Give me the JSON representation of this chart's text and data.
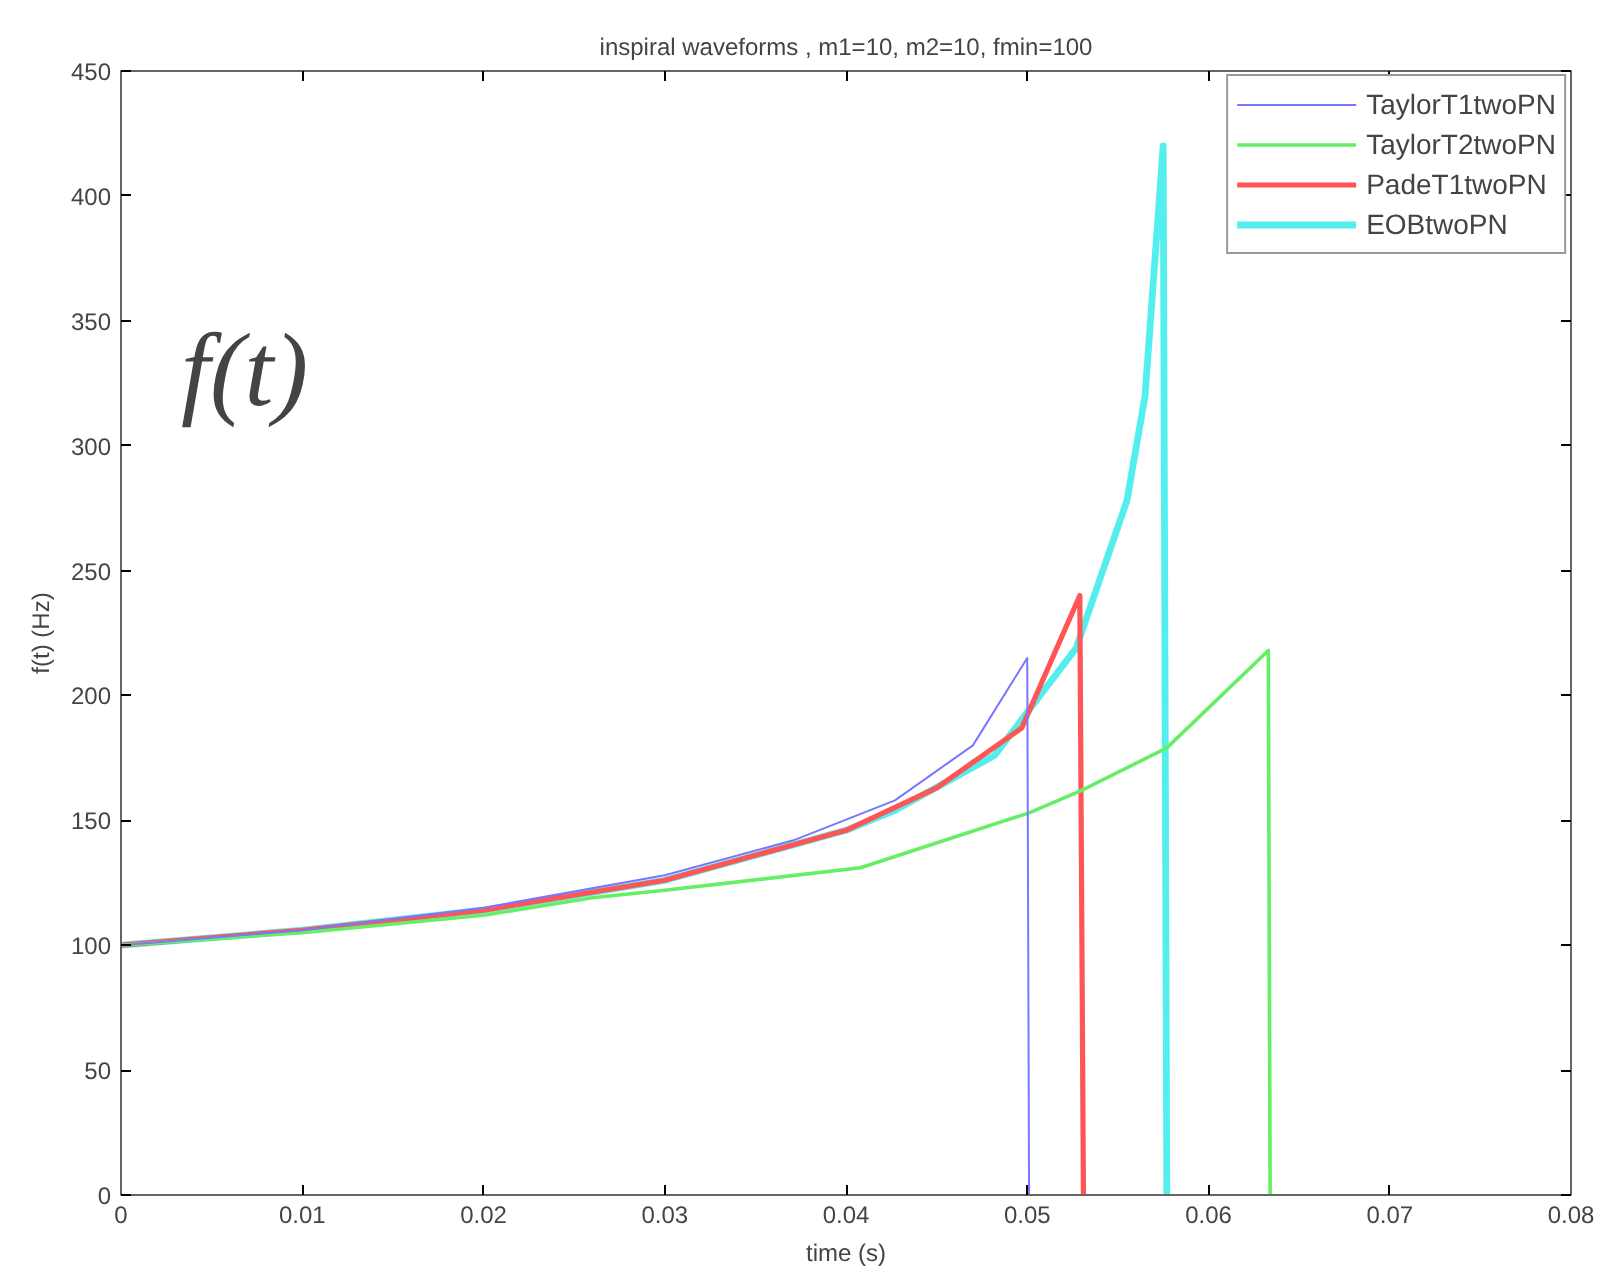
{
  "chart_data": {
    "type": "line",
    "title": "inspiral waveforms , m1=10, m2=10, fmin=100",
    "xlabel": "time (s)",
    "ylabel": "f(t) (Hz)",
    "annotations": [
      "f(t)"
    ],
    "xlim": [
      0,
      0.08
    ],
    "xticks": [
      0,
      0.01,
      0.02,
      0.03,
      0.04,
      0.05,
      0.06,
      0.07,
      0.08
    ],
    "ylim": [
      0,
      450
    ],
    "yticks": [
      0,
      50,
      100,
      150,
      200,
      250,
      300,
      350,
      400,
      450
    ],
    "grid": false,
    "legend": "top right",
    "line_style": "solid",
    "series": [
      {
        "name": "TaylorT1twoPN",
        "color": "#7777ff",
        "x": [
          0,
          0.01,
          0.02,
          0.03,
          0.0371,
          0.0427,
          0.047,
          0.05,
          0.0501
        ],
        "values": [
          100,
          106,
          115,
          128,
          142,
          158,
          180,
          215,
          0
        ]
      },
      {
        "name": "TaylorT2twoPN",
        "color": "#66ee66",
        "x": [
          0,
          0.01,
          0.02,
          0.026,
          0.03,
          0.0408,
          0.0501,
          0.053,
          0.0577,
          0.0633,
          0.0634
        ],
        "values": [
          100,
          105,
          112,
          119,
          122,
          131,
          153,
          162,
          179,
          218,
          0
        ]
      },
      {
        "name": "PadeT1twoPN",
        "color": "#ff5555",
        "x": [
          0,
          0.01,
          0.02,
          0.03,
          0.04,
          0.045,
          0.0497,
          0.0529,
          0.0531
        ],
        "values": [
          100,
          106,
          114,
          126,
          146,
          163,
          187,
          240,
          0
        ]
      },
      {
        "name": "EOBtwoPN",
        "color": "#55eeee",
        "x": [
          0,
          0.01,
          0.02,
          0.03,
          0.04,
          0.0427,
          0.0482,
          0.0527,
          0.0555,
          0.0565,
          0.0575,
          0.0577
        ],
        "values": [
          100,
          106,
          114,
          126,
          146,
          154,
          176,
          219,
          278,
          320,
          420,
          0
        ]
      }
    ]
  }
}
